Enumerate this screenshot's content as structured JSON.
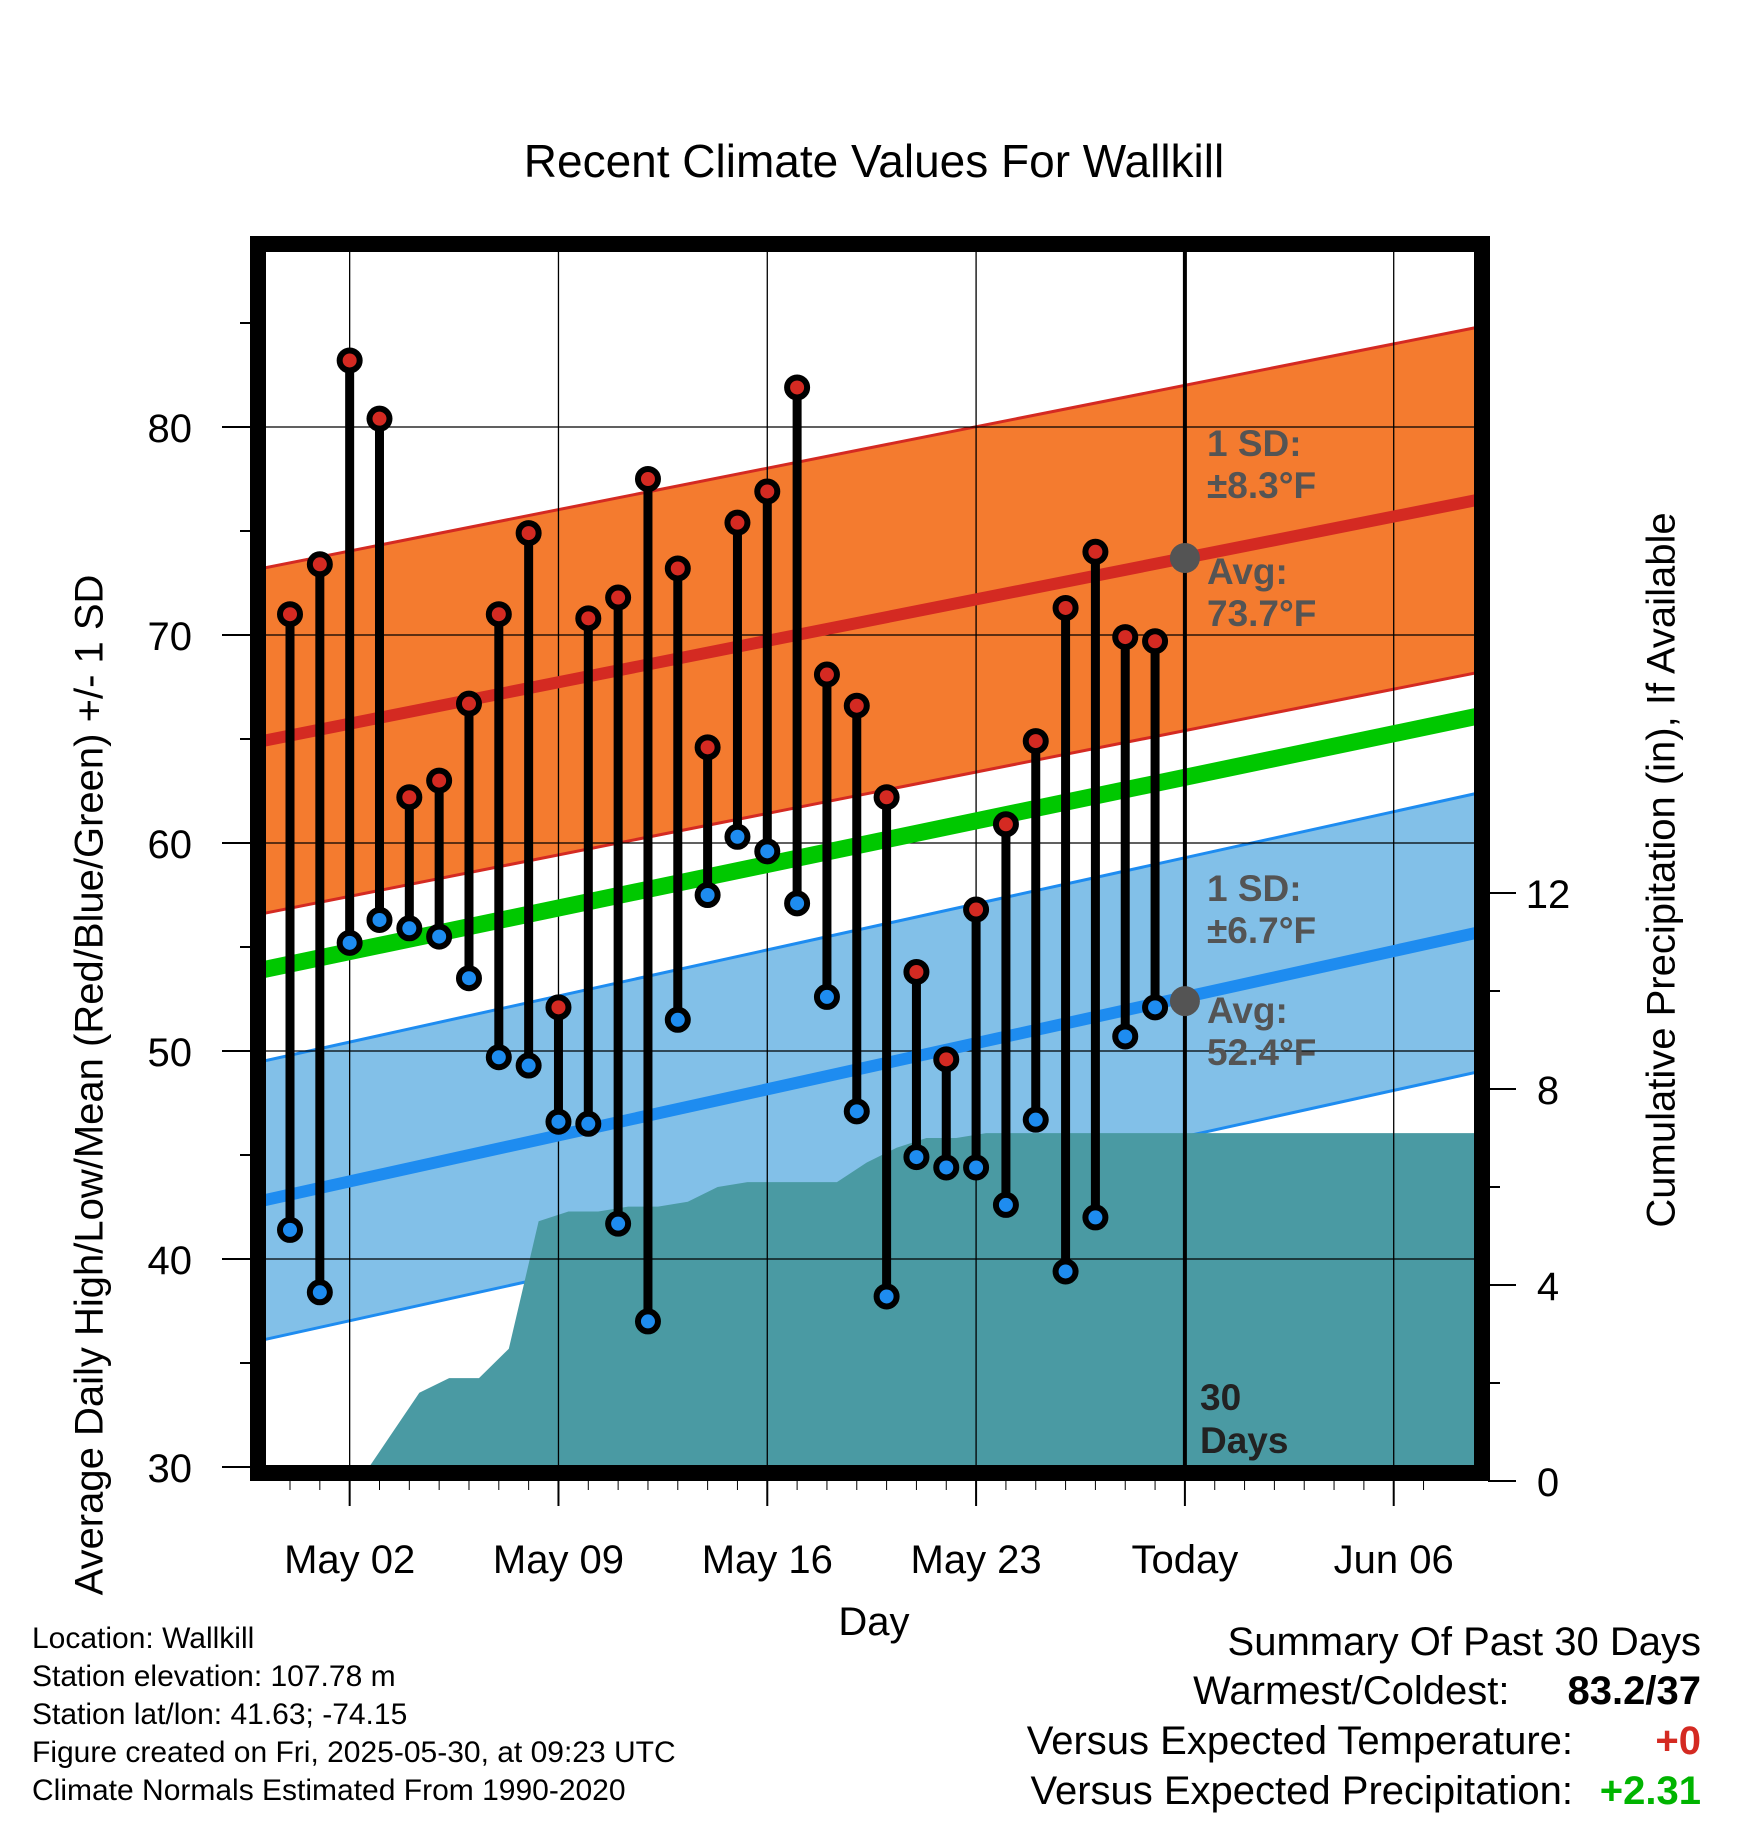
{
  "chart_data": {
    "type": "line",
    "title": "Recent Climate Values For Wallkill",
    "xlabel": "Day",
    "ylabel_left": "Average Daily High/Low/Mean (Red/Blue/Green) +/- 1 SD",
    "ylabel_right": "Cumulative Precipitation (in), If Available",
    "x_ticks": [
      "May 02",
      "May 09",
      "May 16",
      "May 23",
      "Today",
      "Jun 06"
    ],
    "ylim_left": [
      29,
      88
    ],
    "yticks_left": [
      "30",
      "40",
      "50",
      "60",
      "70",
      "80"
    ],
    "ylim_right": [
      0,
      20
    ],
    "yticks_right": [
      "0",
      "4",
      "8",
      "12"
    ],
    "days": [
      "Apr 30",
      "May 01",
      "May 02",
      "May 03",
      "May 04",
      "May 05",
      "May 06",
      "May 07",
      "May 08",
      "May 09",
      "May 10",
      "May 11",
      "May 12",
      "May 13",
      "May 14",
      "May 15",
      "May 16",
      "May 17",
      "May 18",
      "May 19",
      "May 20",
      "May 21",
      "May 22",
      "May 23",
      "May 24",
      "May 25",
      "May 26",
      "May 27",
      "May 28",
      "May 29"
    ],
    "highs": [
      71.0,
      73.4,
      83.2,
      80.4,
      62.2,
      63.0,
      66.7,
      71.0,
      74.9,
      52.1,
      70.8,
      71.8,
      77.5,
      73.2,
      64.6,
      75.4,
      76.9,
      81.9,
      68.1,
      66.6,
      62.2,
      53.8,
      49.6,
      56.8,
      60.9,
      64.9,
      71.3,
      74.0,
      69.9,
      69.7
    ],
    "lows": [
      41.4,
      38.4,
      55.2,
      56.3,
      55.9,
      55.5,
      53.5,
      49.7,
      49.3,
      46.6,
      46.5,
      41.7,
      37.0,
      51.5,
      57.5,
      60.3,
      59.6,
      57.1,
      52.6,
      47.1,
      38.2,
      44.9,
      44.4,
      44.4,
      42.6,
      46.7,
      39.4,
      42.0,
      50.7,
      52.1
    ],
    "normal_high": {
      "start": 64.9,
      "today": 73.7,
      "end": 76.5,
      "sd": 8.3
    },
    "normal_low": {
      "start": 42.8,
      "today": 52.4,
      "end": 55.7,
      "sd": 6.7
    },
    "normal_mean": {
      "start": 53.9,
      "end": 66.1
    },
    "cumulative_precip": [
      0,
      0,
      0,
      0.9,
      1.8,
      2.1,
      2.1,
      2.7,
      5.3,
      5.5,
      5.5,
      5.6,
      5.6,
      5.7,
      6.0,
      6.1,
      6.1,
      6.1,
      6.1,
      6.5,
      6.8,
      7.0,
      7.0,
      7.1,
      7.1,
      7.1,
      7.1,
      7.1,
      7.1,
      7.1
    ],
    "colors": {
      "high_band": "#f47b2f",
      "high_line": "#d42a22",
      "low_band": "#82c0e8",
      "low_line": "#1e8cf0",
      "mean_line": "#00c800",
      "precip": "#4a9aa3",
      "annotation": "#545454"
    }
  },
  "annotations": {
    "high_sd_label": "1 SD:",
    "high_sd_value": "±8.3°F",
    "high_avg_label": "Avg:",
    "high_avg_value": "73.7°F",
    "low_sd_label": "1 SD:",
    "low_sd_value": "±6.7°F",
    "low_avg_label": "Avg:",
    "low_avg_value": "52.4°F",
    "days_count": "30",
    "days_word": "Days"
  },
  "footer": {
    "location": "Location: Wallkill",
    "elevation": "Station elevation: 107.78 m",
    "latlon": "Station lat/lon: 41.63; -74.15",
    "created": "Figure created on Fri, 2025-05-30, at 09:23 UTC",
    "normals": "Climate Normals Estimated From 1990-2020"
  },
  "summary": {
    "title": "Summary Of Past 30 Days",
    "warm_cold_label": "Warmest/Coldest:",
    "warm_cold_value": "83.2/37",
    "temp_label": "Versus Expected Temperature:",
    "temp_value": "+0",
    "temp_color": "#d42a22",
    "precip_label": "Versus Expected Precipitation:",
    "precip_value": "+2.31",
    "precip_color": "#00b400"
  }
}
